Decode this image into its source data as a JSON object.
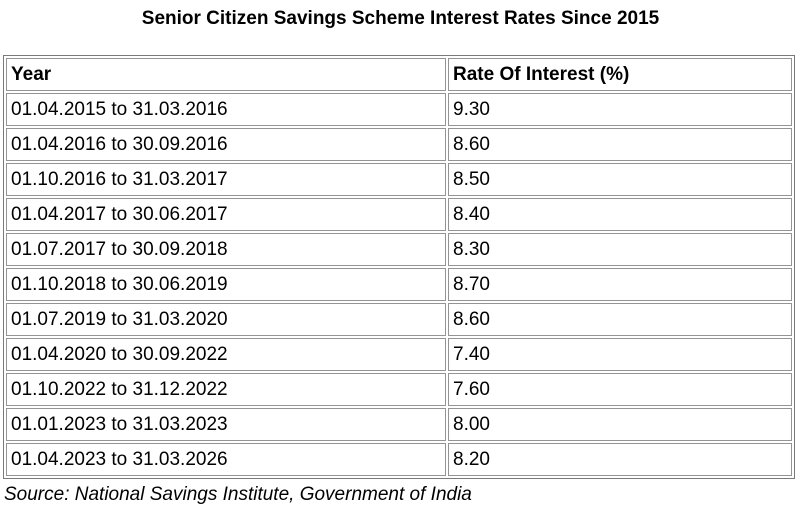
{
  "title": "Senior Citizen Savings Scheme Interest Rates Since 2015",
  "source_note": "Source: National Savings Institute, Government of India",
  "colors": {
    "background": "#ffffff",
    "text": "#000000",
    "border_outer": "#7a7a7a",
    "border_cell": "#949494"
  },
  "table": {
    "columns": [
      "Year",
      "Rate Of Interest (%)"
    ],
    "rows": [
      {
        "year": "01.04.2015 to 31.03.2016",
        "rate": "9.30"
      },
      {
        "year": "01.04.2016 to 30.09.2016",
        "rate": "8.60"
      },
      {
        "year": "01.10.2016 to 31.03.2017",
        "rate": "8.50"
      },
      {
        "year": "01.04.2017 to 30.06.2017",
        "rate": "8.40"
      },
      {
        "year": "01.07.2017 to 30.09.2018",
        "rate": "8.30"
      },
      {
        "year": "01.10.2018 to 30.06.2019",
        "rate": "8.70"
      },
      {
        "year": "01.07.2019 to 31.03.2020",
        "rate": "8.60"
      },
      {
        "year": "01.04.2020 to 30.09.2022",
        "rate": "7.40"
      },
      {
        "year": "01.10.2022 to 31.12.2022",
        "rate": "7.60"
      },
      {
        "year": "01.01.2023 to 31.03.2023",
        "rate": "8.00"
      },
      {
        "year": "01.04.2023 to 31.03.2026",
        "rate": "8.20"
      }
    ]
  },
  "chart_data": {
    "type": "table",
    "title": "Senior Citizen Savings Scheme Interest Rates Since 2015",
    "columns": [
      "Year",
      "Rate Of Interest (%)"
    ],
    "rows": [
      [
        "01.04.2015 to 31.03.2016",
        9.3
      ],
      [
        "01.04.2016 to 30.09.2016",
        8.6
      ],
      [
        "01.10.2016 to 31.03.2017",
        8.5
      ],
      [
        "01.04.2017 to 30.06.2017",
        8.4
      ],
      [
        "01.07.2017 to 30.09.2018",
        8.3
      ],
      [
        "01.10.2018 to 30.06.2019",
        8.7
      ],
      [
        "01.07.2019 to 31.03.2020",
        8.6
      ],
      [
        "01.04.2020 to 30.09.2022",
        7.4
      ],
      [
        "01.10.2022 to 31.12.2022",
        7.6
      ],
      [
        "01.01.2023 to 31.03.2023",
        8.0
      ],
      [
        "01.04.2023 to 31.03.2026",
        8.2
      ]
    ],
    "source": "Source: National Savings Institute, Government of India"
  }
}
